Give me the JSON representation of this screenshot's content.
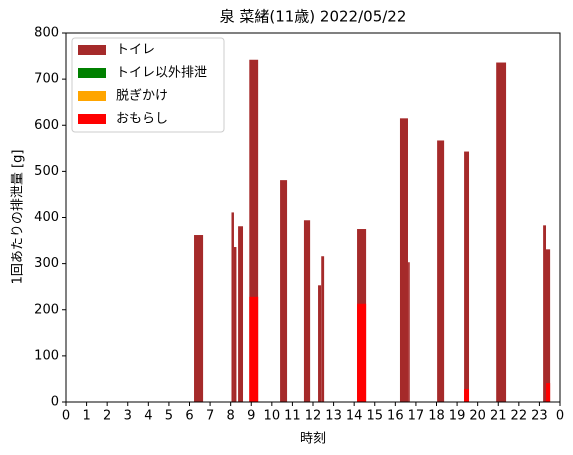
{
  "chart_data": {
    "type": "bar",
    "title": "泉 菜緒(11歳) 2022/05/22",
    "xlabel": "時刻",
    "ylabel": "1回あたりの排泄量 [g]",
    "xlim": [
      0,
      24
    ],
    "xticks": [
      0,
      1,
      2,
      3,
      4,
      5,
      6,
      7,
      8,
      9,
      10,
      11,
      12,
      13,
      14,
      15,
      16,
      17,
      18,
      19,
      20,
      21,
      22,
      23,
      {
        "value": 24,
        "label": "0"
      }
    ],
    "ylim": [
      0,
      800
    ],
    "yticks": [
      0,
      100,
      200,
      300,
      400,
      500,
      600,
      700,
      800
    ],
    "legend": "upper left",
    "series": [
      {
        "name": "トイレ",
        "color": "#a52a2a",
        "x": [
          6.44,
          8.1,
          8.22,
          8.48,
          9.12,
          10.57,
          11.71,
          12.32,
          12.47,
          14.36,
          16.42,
          16.66,
          18.2,
          19.46,
          21.14,
          23.25,
          23.42
        ],
        "widths": [
          0.44,
          0.12,
          0.12,
          0.24,
          0.43,
          0.34,
          0.3,
          0.15,
          0.14,
          0.44,
          0.39,
          0.08,
          0.34,
          0.24,
          0.48,
          0.14,
          0.2
        ],
        "values": [
          362,
          411,
          336,
          381,
          742,
          481,
          394,
          253,
          316,
          375,
          615,
          303,
          567,
          543,
          736,
          383,
          331
        ]
      },
      {
        "name": "トイレ以外排泄",
        "color": "#008000",
        "x": [],
        "widths": [],
        "values": []
      },
      {
        "name": "脱ぎかけ",
        "color": "#ffa500",
        "x": [],
        "widths": [],
        "values": []
      },
      {
        "name": "おもらし",
        "color": "#ff0000",
        "x": [
          9.12,
          14.36,
          19.46,
          23.42
        ],
        "widths": [
          0.43,
          0.44,
          0.24,
          0.2
        ],
        "values": [
          228,
          213,
          28,
          41
        ]
      }
    ]
  }
}
